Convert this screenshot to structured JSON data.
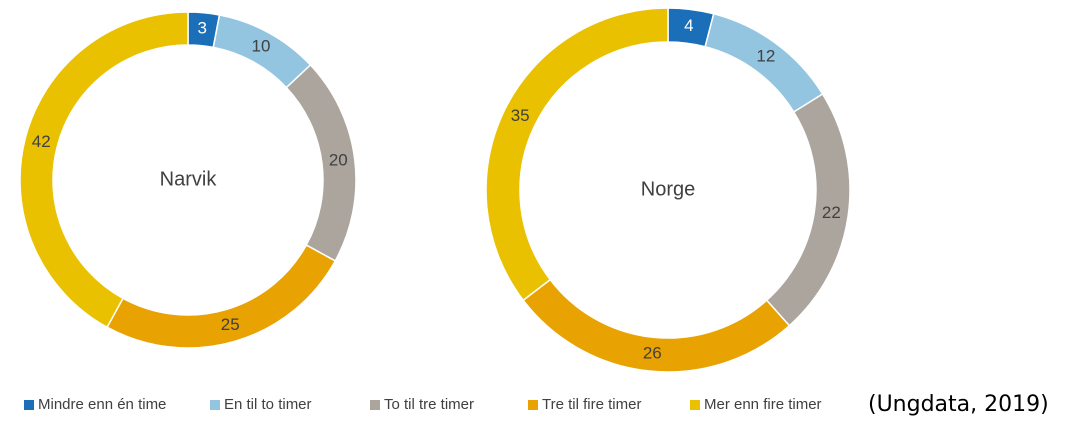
{
  "chart_data": [
    {
      "type": "pie",
      "title": "Narvik",
      "categories": [
        "Mindre enn én time",
        "En til to timer",
        "To til tre timer",
        "Tre til fire timer",
        "Mer enn fire timer"
      ],
      "values": [
        3,
        10,
        20,
        25,
        42
      ],
      "colors": [
        "#1a6fb8",
        "#93c4e0",
        "#aba59d",
        "#e8a202",
        "#e9c100"
      ]
    },
    {
      "type": "pie",
      "title": "Norge",
      "categories": [
        "Mindre enn én time",
        "En til to timer",
        "To til tre timer",
        "Tre til fire timer",
        "Mer enn fire timer"
      ],
      "values": [
        4,
        12,
        22,
        26,
        35
      ],
      "colors": [
        "#1a6fb8",
        "#93c4e0",
        "#aba59d",
        "#e8a202",
        "#e9c100"
      ]
    }
  ],
  "source": "(Ungdata, 2019)"
}
